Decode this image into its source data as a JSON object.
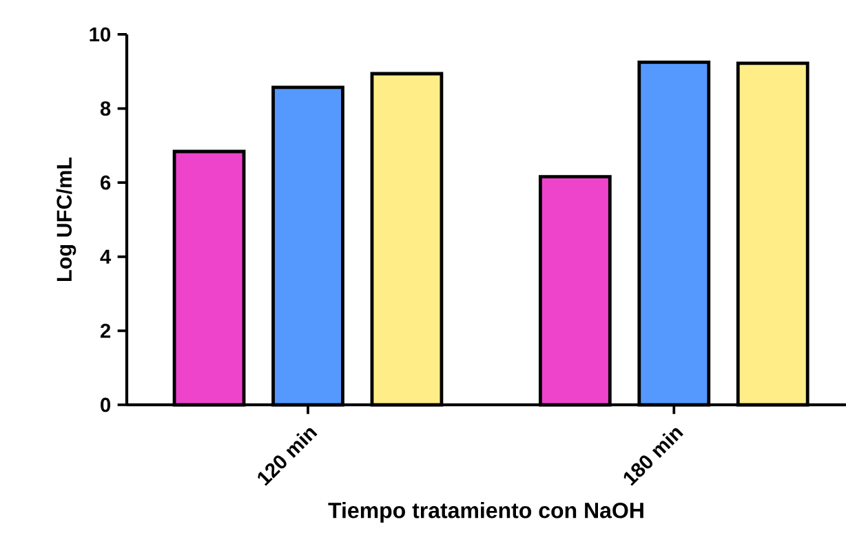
{
  "chart_data": {
    "type": "bar",
    "xlabel": "Tiempo tratamiento con NaOH",
    "ylabel": "Log UFC/mL",
    "categories": [
      "120 min",
      "180 min"
    ],
    "series": [
      {
        "color": "#ee44cc",
        "values": [
          6.84,
          6.16
        ]
      },
      {
        "color": "#5599ff",
        "values": [
          8.57,
          9.25
        ]
      },
      {
        "color": "#ffee88",
        "values": [
          8.94,
          9.22
        ]
      }
    ],
    "ylim": [
      0,
      10
    ],
    "yticks": [
      0,
      2,
      4,
      6,
      8,
      10
    ]
  }
}
